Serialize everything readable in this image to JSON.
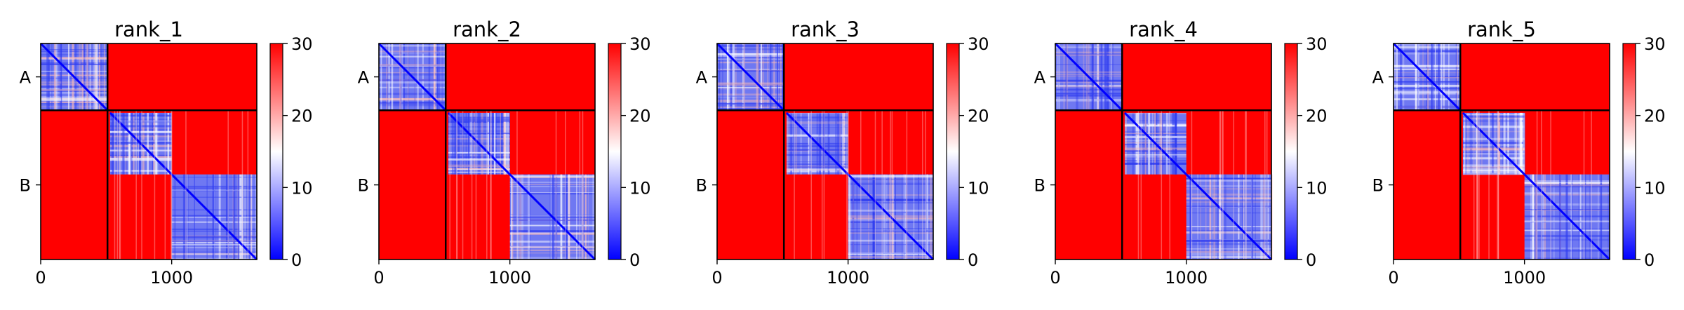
{
  "chart_data": [
    {
      "type": "heatmap",
      "title": "rank_1",
      "chains": [
        {
          "label": "A",
          "start": 0,
          "end": 510
        },
        {
          "label": "B",
          "start": 510,
          "end": 1650
        }
      ],
      "x_ticks": [
        {
          "value": 0,
          "label": "0"
        },
        {
          "value": 1000,
          "label": "1000"
        }
      ],
      "xlim": [
        0,
        1650
      ],
      "colorbar": {
        "min": 0,
        "max": 30,
        "ticks": [
          {
            "value": 0,
            "label": "0"
          },
          {
            "value": 10,
            "label": "10"
          },
          {
            "value": 20,
            "label": "20"
          },
          {
            "value": 30,
            "label": "30"
          }
        ],
        "colormap": "bwr",
        "colors": [
          "#0000ff",
          "#ffffff",
          "#ff0000"
        ]
      },
      "low_error_blocks": [
        {
          "x": [
            0,
            510
          ],
          "y": [
            0,
            510
          ]
        },
        {
          "x": [
            530,
            1000
          ],
          "y": [
            530,
            1000
          ]
        },
        {
          "x": [
            1000,
            1650
          ],
          "y": [
            1000,
            1650
          ]
        }
      ]
    },
    {
      "type": "heatmap",
      "title": "rank_2",
      "chains": [
        {
          "label": "A",
          "start": 0,
          "end": 510
        },
        {
          "label": "B",
          "start": 510,
          "end": 1650
        }
      ],
      "x_ticks": [
        {
          "value": 0,
          "label": "0"
        },
        {
          "value": 1000,
          "label": "1000"
        }
      ],
      "xlim": [
        0,
        1650
      ],
      "colorbar": {
        "min": 0,
        "max": 30,
        "ticks": [
          {
            "value": 0,
            "label": "0"
          },
          {
            "value": 10,
            "label": "10"
          },
          {
            "value": 20,
            "label": "20"
          },
          {
            "value": 30,
            "label": "30"
          }
        ],
        "colormap": "bwr",
        "colors": [
          "#0000ff",
          "#ffffff",
          "#ff0000"
        ]
      },
      "low_error_blocks": [
        {
          "x": [
            0,
            510
          ],
          "y": [
            0,
            510
          ]
        },
        {
          "x": [
            530,
            1000
          ],
          "y": [
            530,
            1000
          ]
        },
        {
          "x": [
            1000,
            1650
          ],
          "y": [
            1000,
            1650
          ]
        }
      ]
    },
    {
      "type": "heatmap",
      "title": "rank_3",
      "chains": [
        {
          "label": "A",
          "start": 0,
          "end": 510
        },
        {
          "label": "B",
          "start": 510,
          "end": 1650
        }
      ],
      "x_ticks": [
        {
          "value": 0,
          "label": "0"
        },
        {
          "value": 1000,
          "label": "1000"
        }
      ],
      "xlim": [
        0,
        1650
      ],
      "colorbar": {
        "min": 0,
        "max": 30,
        "ticks": [
          {
            "value": 0,
            "label": "0"
          },
          {
            "value": 10,
            "label": "10"
          },
          {
            "value": 20,
            "label": "20"
          },
          {
            "value": 30,
            "label": "30"
          }
        ],
        "colormap": "bwr",
        "colors": [
          "#0000ff",
          "#ffffff",
          "#ff0000"
        ]
      },
      "low_error_blocks": [
        {
          "x": [
            0,
            510
          ],
          "y": [
            0,
            510
          ]
        },
        {
          "x": [
            530,
            1000
          ],
          "y": [
            530,
            1000
          ]
        },
        {
          "x": [
            1000,
            1650
          ],
          "y": [
            1000,
            1650
          ]
        }
      ]
    },
    {
      "type": "heatmap",
      "title": "rank_4",
      "chains": [
        {
          "label": "A",
          "start": 0,
          "end": 510
        },
        {
          "label": "B",
          "start": 510,
          "end": 1650
        }
      ],
      "x_ticks": [
        {
          "value": 0,
          "label": "0"
        },
        {
          "value": 1000,
          "label": "1000"
        }
      ],
      "xlim": [
        0,
        1650
      ],
      "colorbar": {
        "min": 0,
        "max": 30,
        "ticks": [
          {
            "value": 0,
            "label": "0"
          },
          {
            "value": 10,
            "label": "10"
          },
          {
            "value": 20,
            "label": "20"
          },
          {
            "value": 30,
            "label": "30"
          }
        ],
        "colormap": "bwr",
        "colors": [
          "#0000ff",
          "#ffffff",
          "#ff0000"
        ]
      },
      "low_error_blocks": [
        {
          "x": [
            0,
            510
          ],
          "y": [
            0,
            510
          ]
        },
        {
          "x": [
            530,
            1000
          ],
          "y": [
            530,
            1000
          ]
        },
        {
          "x": [
            1000,
            1650
          ],
          "y": [
            1000,
            1650
          ]
        }
      ]
    },
    {
      "type": "heatmap",
      "title": "rank_5",
      "chains": [
        {
          "label": "A",
          "start": 0,
          "end": 510
        },
        {
          "label": "B",
          "start": 510,
          "end": 1650
        }
      ],
      "x_ticks": [
        {
          "value": 0,
          "label": "0"
        },
        {
          "value": 1000,
          "label": "1000"
        }
      ],
      "xlim": [
        0,
        1650
      ],
      "colorbar": {
        "min": 0,
        "max": 30,
        "ticks": [
          {
            "value": 0,
            "label": "0"
          },
          {
            "value": 10,
            "label": "10"
          },
          {
            "value": 20,
            "label": "20"
          },
          {
            "value": 30,
            "label": "30"
          }
        ],
        "colormap": "bwr",
        "colors": [
          "#0000ff",
          "#ffffff",
          "#ff0000"
        ]
      },
      "low_error_blocks": [
        {
          "x": [
            0,
            510
          ],
          "y": [
            0,
            510
          ]
        },
        {
          "x": [
            530,
            1000
          ],
          "y": [
            530,
            1000
          ]
        },
        {
          "x": [
            1000,
            1650
          ],
          "y": [
            1000,
            1650
          ]
        }
      ]
    }
  ]
}
